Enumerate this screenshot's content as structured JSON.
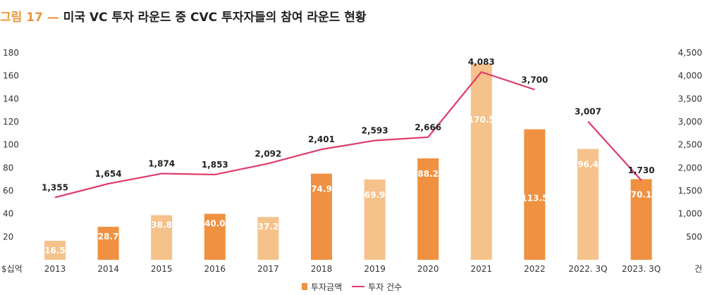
{
  "title": {
    "prefix": "그림 17",
    "dash": "—",
    "text": "미국 VC 투자 라운드 중 CVC 투자자들의 참여 라운드 현황"
  },
  "colors": {
    "bar_dark": "#ef9140",
    "bar_light": "#f6c28b",
    "line": "#de3b69",
    "accent": "#e8963c"
  },
  "chart_data": {
    "type": "bar",
    "categories": [
      "2013",
      "2014",
      "2015",
      "2016",
      "2017",
      "2018",
      "2019",
      "2020",
      "2021",
      "2022",
      "2022. 3Q",
      "2023. 3Q"
    ],
    "series": [
      {
        "name": "투자금액",
        "type": "bar",
        "axis": "left",
        "values": [
          16.5,
          28.7,
          38.8,
          40.0,
          37.2,
          74.9,
          69.9,
          88.2,
          170.5,
          113.5,
          96.4,
          70.1
        ],
        "labels": [
          "16.5",
          "28.7",
          "38.8",
          "40.0",
          "37.2",
          "74.9",
          "69.9",
          "88.2",
          "170.5",
          "113.5",
          "96.4",
          "70.1"
        ],
        "shade": [
          "light",
          "dark",
          "light",
          "dark",
          "light",
          "dark",
          "light",
          "dark",
          "light",
          "dark",
          "light",
          "dark"
        ]
      },
      {
        "name": "투자 건수",
        "type": "line",
        "axis": "right",
        "values": [
          1355,
          1654,
          1874,
          1853,
          2092,
          2401,
          2593,
          2666,
          4083,
          3700,
          3007,
          1730
        ],
        "labels": [
          "1,355",
          "1,654",
          "1,874",
          "1,853",
          "2,092",
          "2,401",
          "2,593",
          "2,666",
          "4,083",
          "3,700",
          "3,007",
          "1,730"
        ],
        "segments": [
          [
            0,
            9
          ],
          [
            10,
            11
          ]
        ]
      }
    ],
    "y_left": {
      "unit_label": "$십억",
      "ylim": [
        0,
        180
      ],
      "ticks": [
        "20",
        "40",
        "60",
        "80",
        "100",
        "120",
        "140",
        "160",
        "180"
      ]
    },
    "y_right": {
      "unit_label": "건",
      "ylim": [
        0,
        4500
      ],
      "ticks": [
        "500",
        "1,000",
        "1,500",
        "2,000",
        "2,500",
        "3,000",
        "3,500",
        "4,000",
        "4,500"
      ]
    },
    "grid": false,
    "legend_position": "bottom-center"
  },
  "legend": {
    "bar_label": "투자금액",
    "line_label": "투자 건수"
  }
}
